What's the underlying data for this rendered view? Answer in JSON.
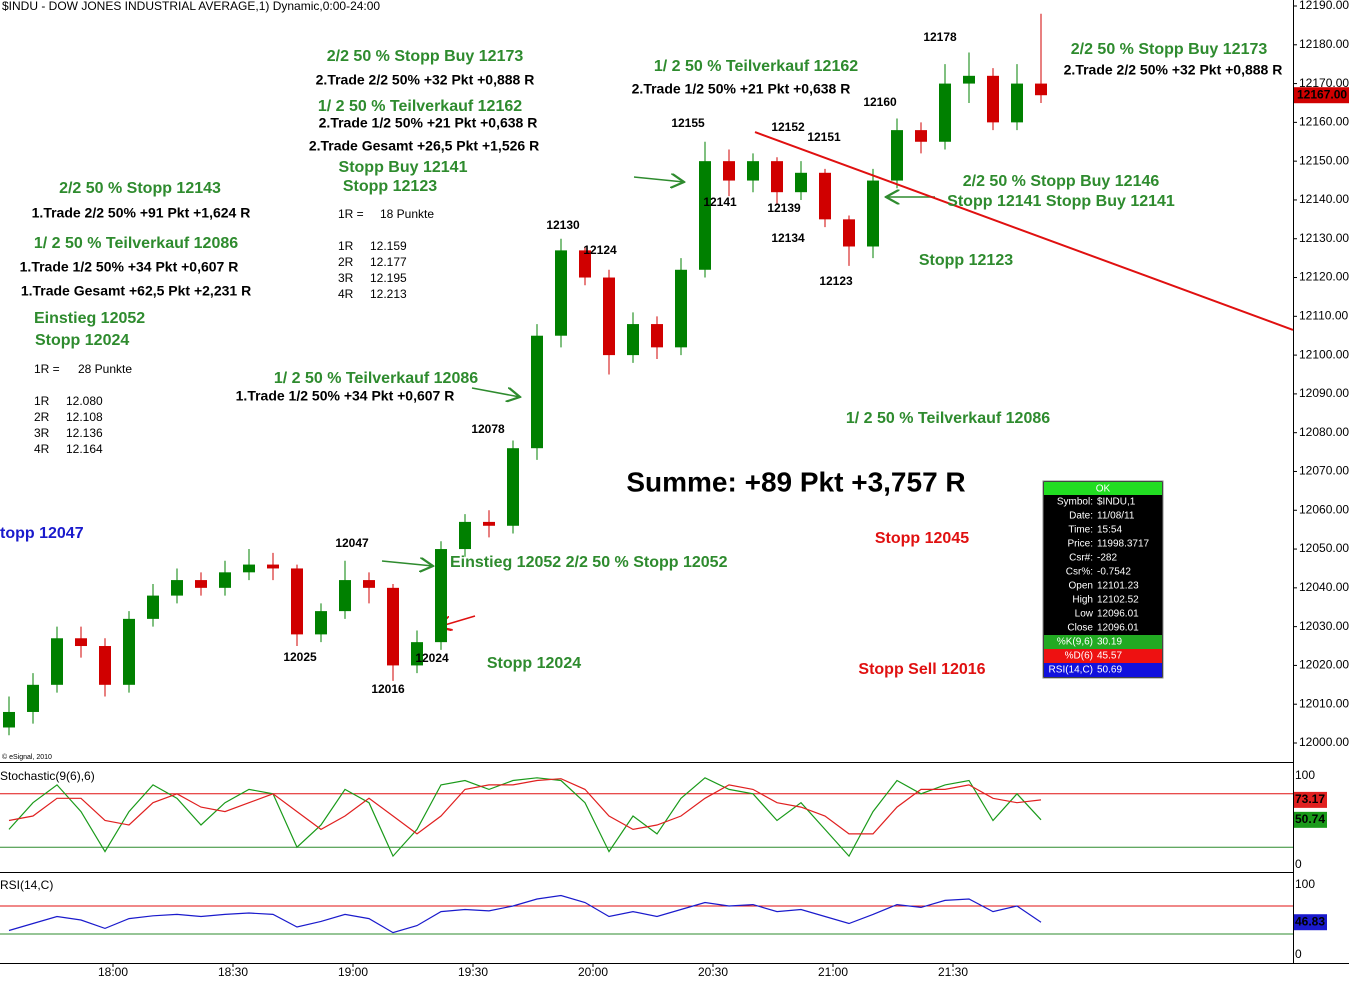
{
  "chart_data": [
    {
      "type": "candlestick",
      "title": "$INDU - DOW JONES INDUSTRIAL AVERAGE,1) Dynamic,0:00-24:00",
      "x": [
        1054,
        1060,
        1066,
        1072,
        1078,
        1084,
        1090,
        1096,
        1102,
        1108,
        1114,
        1120,
        1126,
        1132,
        1138,
        1144,
        1150,
        1156,
        1162,
        1168,
        1174,
        1180,
        1186,
        1192,
        1198,
        1204,
        1210,
        1216,
        1222,
        1228,
        1234,
        1240,
        1246,
        1252,
        1258,
        1264,
        1270,
        1276,
        1282,
        1288,
        1294,
        1300,
        1306,
        1312
      ],
      "open": [
        12004,
        12008,
        12015,
        12027,
        12025,
        12015,
        12032,
        12038,
        12042,
        12040,
        12044,
        12046,
        12045,
        12028,
        12034,
        12042,
        12040,
        12020,
        12026,
        12050,
        12057,
        12056,
        12076,
        12105,
        12127,
        12120,
        12100,
        12108,
        12102,
        12122,
        12150,
        12145,
        12150,
        12142,
        12147,
        12135,
        12128,
        12145,
        12158,
        12155,
        12170,
        12172,
        12160,
        12170
      ],
      "high": [
        12012,
        12018,
        12030,
        12030,
        12027,
        12034,
        12041,
        12045,
        12044,
        12047,
        12050,
        12049,
        12046,
        12036,
        12047,
        12044,
        12041,
        12029,
        12052,
        12059,
        12060,
        12078,
        12108,
        12130,
        12128,
        12122,
        12111,
        12110,
        12125,
        12155,
        12153,
        12152,
        12151,
        12150,
        12148,
        12136,
        12148,
        12161,
        12160,
        12175,
        12178,
        12174,
        12175,
        12188
      ],
      "low": [
        12002,
        12005,
        12013,
        12022,
        12012,
        12013,
        12030,
        12036,
        12038,
        12038,
        12042,
        12042,
        12025,
        12026,
        12032,
        12036,
        12016,
        12018,
        12024,
        12048,
        12053,
        12054,
        12073,
        12102,
        12118,
        12095,
        12098,
        12099,
        12100,
        12120,
        12141,
        12142,
        12139,
        12140,
        12133,
        12123,
        12125,
        12143,
        12152,
        12153,
        12165,
        12158,
        12158,
        12165
      ],
      "close": [
        12008,
        12015,
        12027,
        12025,
        12015,
        12032,
        12038,
        12042,
        12040,
        12044,
        12046,
        12045,
        12028,
        12034,
        12042,
        12040,
        12020,
        12026,
        12050,
        12057,
        12056,
        12076,
        12105,
        12127,
        12120,
        12100,
        12108,
        12102,
        12122,
        12150,
        12145,
        12150,
        12142,
        12147,
        12135,
        12128,
        12145,
        12158,
        12155,
        12170,
        12172,
        12160,
        12170,
        12167
      ],
      "last_label": "12167.00",
      "up_color": "#008000",
      "down_color": "#d00000",
      "xlim": [
        1051.75,
        1375
      ],
      "ylim": [
        12000,
        12190
      ],
      "xticks": [
        {
          "value": 1080,
          "label": "18:00"
        },
        {
          "value": 1110,
          "label": "18:30"
        },
        {
          "value": 1140,
          "label": "19:00"
        },
        {
          "value": 1170,
          "label": "19:30"
        },
        {
          "value": 1200,
          "label": "20:00"
        },
        {
          "value": 1230,
          "label": "20:30"
        },
        {
          "value": 1260,
          "label": "21:00"
        },
        {
          "value": 1290,
          "label": "21:30"
        }
      ],
      "yticks": [
        {
          "value": 12000,
          "label": "12000.00"
        },
        {
          "value": 12010,
          "label": "12010.00"
        },
        {
          "value": 12020,
          "label": "12020.00"
        },
        {
          "value": 12030,
          "label": "12030.00"
        },
        {
          "value": 12040,
          "label": "12040.00"
        },
        {
          "value": 12050,
          "label": "12050.00"
        },
        {
          "value": 12060,
          "label": "12060.00"
        },
        {
          "value": 12070,
          "label": "12070.00"
        },
        {
          "value": 12080,
          "label": "12080.00"
        },
        {
          "value": 12090,
          "label": "12090.00"
        },
        {
          "value": 12100,
          "label": "12100.00"
        },
        {
          "value": 12110,
          "label": "12110.00"
        },
        {
          "value": 12120,
          "label": "12120.00"
        },
        {
          "value": 12130,
          "label": "12130.00"
        },
        {
          "value": 12140,
          "label": "12140.00"
        },
        {
          "value": 12150,
          "label": "12150.00"
        },
        {
          "value": 12160,
          "label": "12160.00"
        },
        {
          "value": 12170,
          "label": "12170.00"
        },
        {
          "value": 12180,
          "label": "12180.00"
        },
        {
          "value": 12190,
          "label": "12190.00"
        }
      ],
      "trendline": {
        "x": [
          1240.5,
          1375
        ],
        "y": [
          12157.5,
          12106.5
        ],
        "color": "#e01010"
      },
      "annotations": [
        "2/2 50 % Stopp Buy 12173",
        "2.Trade 2/2 50% +32 Pkt +0,888 R",
        "1/ 2 50 % Teilverkauf 12162",
        "2.Trade 1/2 50% +21 Pkt +0,638 R",
        "2.Trade Gesamt +26,5 Pkt +1,526 R",
        "Stopp Buy 12141",
        "Stopp 12123",
        "1R =",
        "18 Punkte",
        "1R",
        "12.159",
        "2R",
        "12.177",
        "3R",
        "12.195",
        "4R",
        "12.213",
        "2/2 50 % Stopp 12143",
        "1.Trade 2/2 50% +91 Pkt +1,624 R",
        "1/ 2 50 % Teilverkauf 12086",
        "1.Trade 1/2 50% +34 Pkt +0,607 R",
        "1.Trade Gesamt +62,5 Pkt +2,231 R",
        "Einstieg 12052",
        "Stopp 12024",
        "1R =",
        "28 Punkte",
        "1R",
        "12.080",
        "2R",
        "12.108",
        "3R",
        "12.136",
        "4R",
        "12.164",
        "topp 12047",
        "1/ 2 50 % Teilverkauf 12086",
        "1.Trade 1/2 50% +34 Pkt +0,607 R",
        "12078",
        "12047",
        "12025",
        "12016",
        "12024",
        "Einstieg 12052 2/2 50 % Stopp 12052",
        "Stopp 12024",
        "12130",
        "12124",
        "1/ 2 50 % Teilverkauf 12162",
        "2.Trade 1/2 50% +21 Pkt +0,638 R",
        "12155",
        "12152",
        "12151",
        "12141",
        "12139",
        "12134",
        "12123",
        "12160",
        "12178",
        "2/2 50 % Stopp Buy 12173",
        "2.Trade 2/2 50% +32 Pkt +0,888 R",
        "2/2 50 % Stopp Buy 12146",
        "Stopp 12141  Stopp Buy 12141",
        "Stopp 12123",
        "1/ 2 50 % Teilverkauf 12086",
        "Summe: +89 Pkt +3,757 R",
        "Stopp 12045",
        "Stopp Sell 12016",
        "© eSignal, 2010"
      ]
    },
    {
      "type": "line",
      "title": "Stochastic(9(6),6)",
      "ylim": [
        0,
        100
      ],
      "yticks": [
        0,
        100
      ],
      "levels": [
        20,
        80
      ],
      "level_colors": [
        "#2e8b2e",
        "#e01010"
      ],
      "series": [
        {
          "color": "#1a9a1a",
          "values": [
            40,
            70,
            90,
            60,
            15,
            60,
            90,
            75,
            45,
            70,
            85,
            80,
            20,
            45,
            85,
            70,
            10,
            40,
            90,
            95,
            85,
            95,
            98,
            95,
            70,
            15,
            55,
            35,
            75,
            98,
            85,
            80,
            50,
            70,
            40,
            10,
            60,
            95,
            80,
            90,
            95,
            50,
            80,
            50.74
          ]
        },
        {
          "color": "#e02020",
          "values": [
            50,
            55,
            75,
            75,
            50,
            45,
            70,
            80,
            65,
            60,
            70,
            80,
            60,
            40,
            55,
            75,
            55,
            35,
            55,
            85,
            90,
            90,
            95,
            97,
            85,
            55,
            40,
            45,
            55,
            75,
            90,
            85,
            70,
            65,
            55,
            35,
            35,
            65,
            85,
            85,
            90,
            75,
            70,
            73.17
          ]
        }
      ]
    },
    {
      "type": "line",
      "title": "RSI(14,C)",
      "ylim": [
        0,
        100
      ],
      "yticks": [
        0,
        100
      ],
      "levels": [
        30,
        70
      ],
      "level_colors": [
        "#2e8b2e",
        "#e01010"
      ],
      "series": [
        {
          "color": "#1a1acc",
          "values": [
            35,
            45,
            55,
            50,
            38,
            52,
            56,
            58,
            55,
            58,
            60,
            58,
            40,
            48,
            58,
            52,
            32,
            42,
            62,
            65,
            63,
            70,
            80,
            85,
            75,
            55,
            62,
            55,
            65,
            75,
            70,
            72,
            62,
            65,
            55,
            45,
            58,
            72,
            68,
            78,
            80,
            62,
            70,
            46.83
          ]
        }
      ]
    }
  ],
  "data_window": {
    "title": "OK",
    "rows": [
      [
        "Symbol:",
        "$INDU,1"
      ],
      [
        "Date:",
        "11/08/11"
      ],
      [
        "Time:",
        "15:54"
      ],
      [
        "Price:",
        "11998.3717"
      ],
      [
        "Csr#:",
        "-282"
      ],
      [
        "Csr%:",
        "-0.7542"
      ],
      [
        "Open",
        "12101.23"
      ],
      [
        "High",
        "12102.52"
      ],
      [
        "Low",
        "12096.01"
      ],
      [
        "Close",
        "12096.01"
      ],
      [
        "%K(9,6)",
        "30.19"
      ],
      [
        "%D(6)",
        "45.57"
      ],
      [
        "RSI(14,C)",
        "50.69"
      ]
    ]
  }
}
